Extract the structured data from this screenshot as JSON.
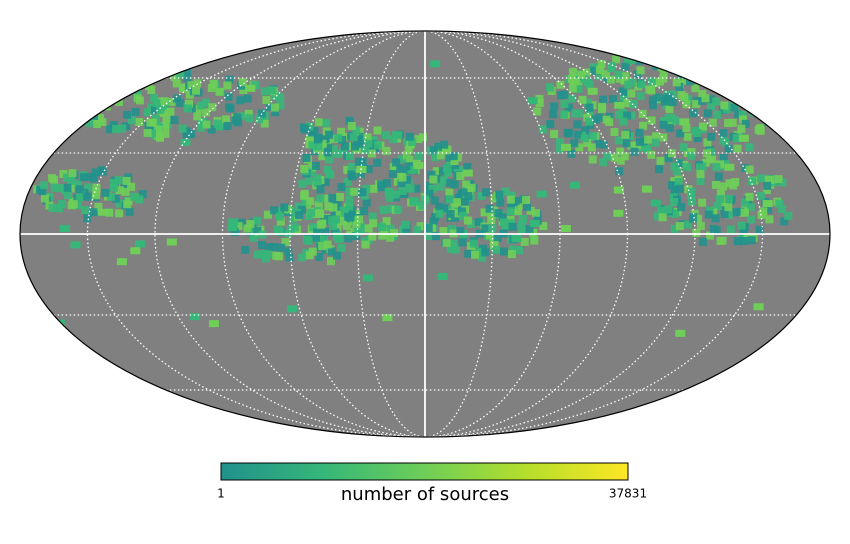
{
  "colorbar": {
    "label": "number of sources",
    "min": 1,
    "max": 37831,
    "colormap": [
      "#21918c",
      "#35b779",
      "#6ece58",
      "#b5de2b",
      "#fde725"
    ]
  }
}
